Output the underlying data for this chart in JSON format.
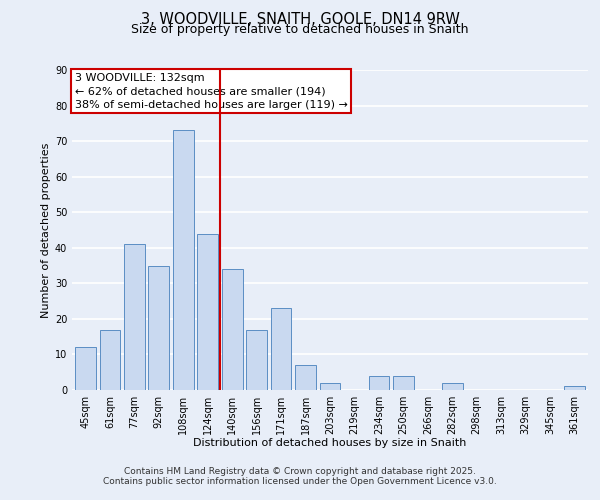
{
  "title": "3, WOODVILLE, SNAITH, GOOLE, DN14 9RW",
  "subtitle": "Size of property relative to detached houses in Snaith",
  "xlabel": "Distribution of detached houses by size in Snaith",
  "ylabel": "Number of detached properties",
  "bar_labels": [
    "45sqm",
    "61sqm",
    "77sqm",
    "92sqm",
    "108sqm",
    "124sqm",
    "140sqm",
    "156sqm",
    "171sqm",
    "187sqm",
    "203sqm",
    "219sqm",
    "234sqm",
    "250sqm",
    "266sqm",
    "282sqm",
    "298sqm",
    "313sqm",
    "329sqm",
    "345sqm",
    "361sqm"
  ],
  "bar_values": [
    12,
    17,
    41,
    35,
    73,
    44,
    34,
    17,
    23,
    7,
    2,
    0,
    4,
    4,
    0,
    2,
    0,
    0,
    0,
    0,
    1
  ],
  "bar_color": "#c9d9f0",
  "bar_edge_color": "#5b8ec4",
  "background_color": "#e8eef8",
  "grid_color": "#ffffff",
  "vline_color": "#cc0000",
  "annotation_text": "3 WOODVILLE: 132sqm\n← 62% of detached houses are smaller (194)\n38% of semi-detached houses are larger (119) →",
  "annotation_box_edgecolor": "#cc0000",
  "ylim": [
    0,
    90
  ],
  "yticks": [
    0,
    10,
    20,
    30,
    40,
    50,
    60,
    70,
    80,
    90
  ],
  "footer_line1": "Contains HM Land Registry data © Crown copyright and database right 2025.",
  "footer_line2": "Contains public sector information licensed under the Open Government Licence v3.0.",
  "title_fontsize": 10.5,
  "subtitle_fontsize": 9,
  "tick_fontsize": 7,
  "label_fontsize": 8,
  "annotation_fontsize": 8,
  "footer_fontsize": 6.5
}
